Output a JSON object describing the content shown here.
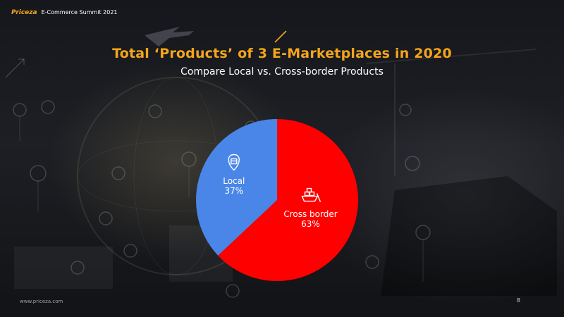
{
  "header": {
    "brand_logo": "Priceza",
    "brand_event": "E-Commerce Summit 2021"
  },
  "slide": {
    "title": "Total ‘Products’ of 3 E-Marketplaces in 2020",
    "subtitle": "Compare Local vs. Cross-border Products"
  },
  "footer": {
    "url": "www.priceza.com",
    "page": "8"
  },
  "colors": {
    "accent": "#f4a51c",
    "local": "#4a86e8",
    "cross_border": "#ff0000"
  },
  "chart_data": {
    "type": "pie",
    "title": "Total ‘Products’ of 3 E-Marketplaces in 2020",
    "subtitle": "Compare Local vs. Cross-border Products",
    "slices": [
      {
        "name": "Cross border",
        "value": 63,
        "label": "63%",
        "color": "#ff0000",
        "icon": "cargo-ship-icon"
      },
      {
        "name": "Local",
        "value": 37,
        "label": "37%",
        "color": "#4a86e8",
        "icon": "location-pin-box-icon"
      }
    ],
    "start_angle_deg": 0,
    "direction": "clockwise",
    "legend": "none"
  }
}
